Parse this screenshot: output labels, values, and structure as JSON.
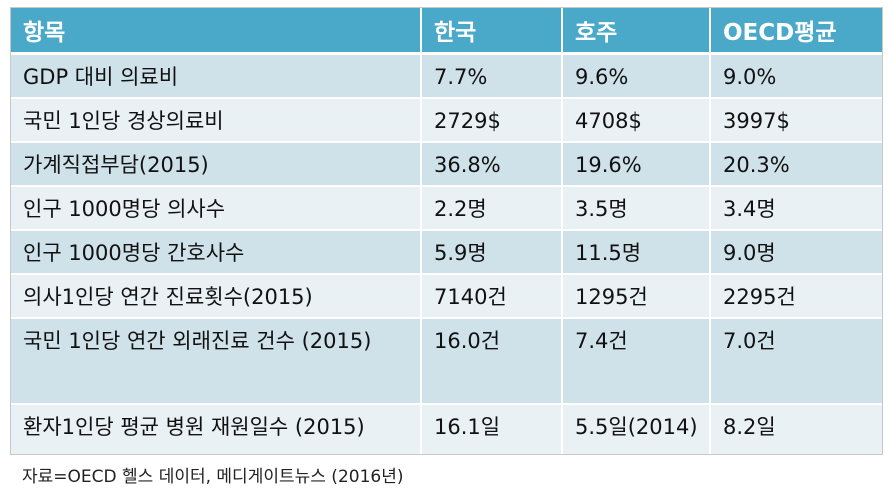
{
  "table": {
    "headers": [
      "항목",
      "한국",
      "호주",
      "OECD평균"
    ],
    "rows": [
      [
        "GDP 대비 의료비",
        "7.7%",
        "9.6%",
        "9.0%"
      ],
      [
        "국민 1인당 경상의료비",
        "2729$",
        "4708$",
        "3997$"
      ],
      [
        "가계직접부담(2015)",
        "36.8%",
        "19.6%",
        "20.3%"
      ],
      [
        "인구 1000명당 의사수",
        "2.2명",
        "3.5명",
        "3.4명"
      ],
      [
        "인구 1000명당 간호사수",
        "5.9명",
        "11.5명",
        "9.0명"
      ],
      [
        "의사1인당 연간 진료횟수(2015)",
        "7140건",
        "1295건",
        "2295건"
      ],
      [
        "국민 1인당 연간 외래진료 건수 (2015)",
        "16.0건",
        "7.4건",
        "7.0건"
      ],
      [
        "환자1인당 평균 병원 재원일수 (2015)",
        "16.1일",
        "5.5일(2014)",
        "8.2일"
      ]
    ]
  },
  "source": "자료=OECD 헬스 데이터, 메디게이트뉴스 (2016년)",
  "colors": {
    "header_bg": "#4aa8c9",
    "row_dark": "#cfe2ea",
    "row_light": "#e9f1f5"
  }
}
